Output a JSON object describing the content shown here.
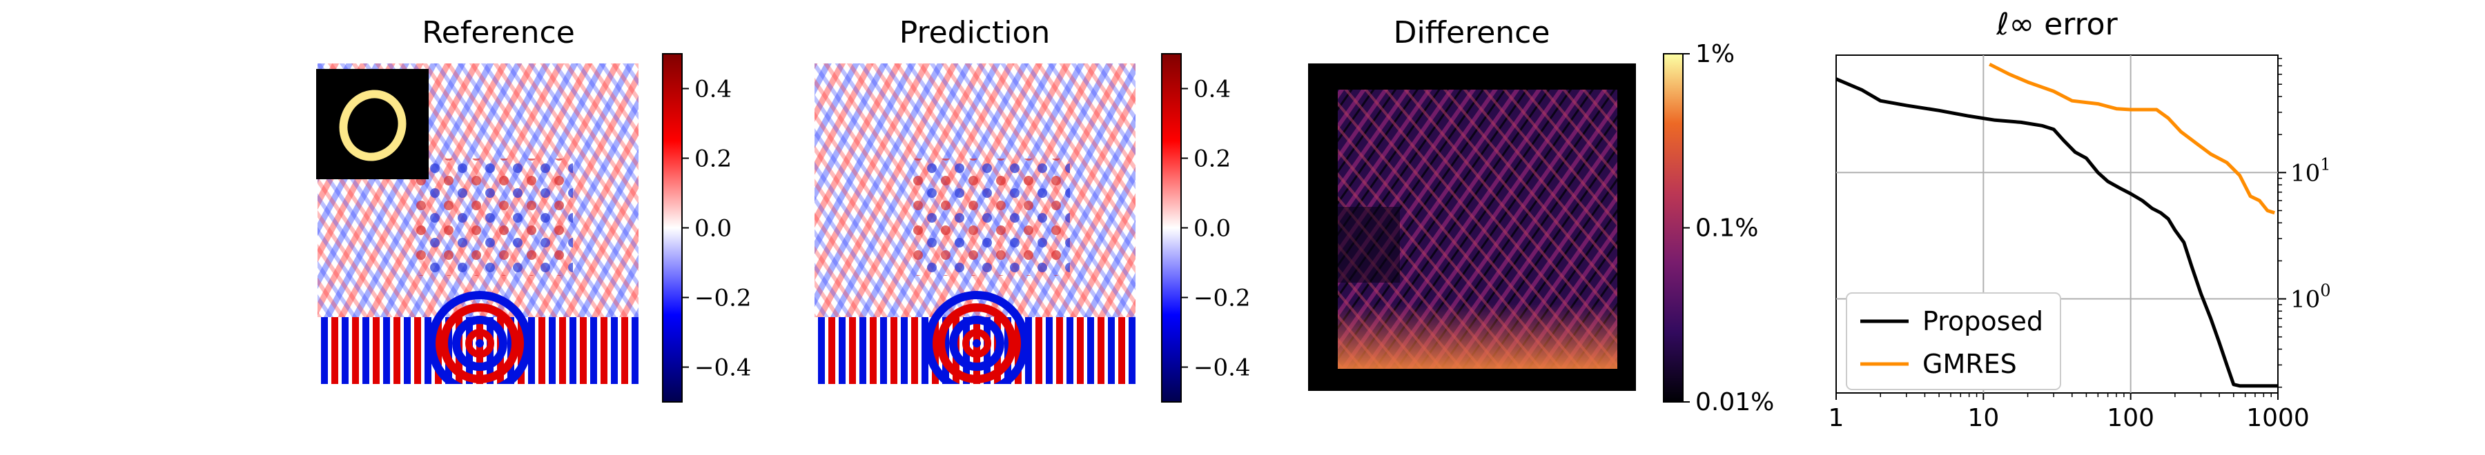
{
  "chart_data": [
    {
      "type": "heatmap",
      "title": "Reference",
      "colormap": "seismic",
      "colorbar": {
        "min": -0.5,
        "max": 0.5,
        "ticks": [
          "0.4",
          "0.2",
          "0.0",
          "−0.2",
          "−0.4"
        ],
        "tick_values": [
          0.4,
          0.2,
          0.0,
          -0.2,
          -0.4
        ]
      },
      "inset": "ring"
    },
    {
      "type": "heatmap",
      "title": "Prediction",
      "colormap": "seismic",
      "colorbar": {
        "min": -0.5,
        "max": 0.5,
        "ticks": [
          "0.4",
          "0.2",
          "0.0",
          "−0.2",
          "−0.4"
        ],
        "tick_values": [
          0.4,
          0.2,
          0.0,
          -0.2,
          -0.4
        ]
      }
    },
    {
      "type": "heatmap",
      "title": "Difference",
      "colormap": "inferno",
      "colorbar": {
        "scale": "log",
        "ticks": [
          "1%",
          "0.1%",
          "0.01%"
        ],
        "tick_values": [
          1,
          0.1,
          0.01
        ]
      }
    },
    {
      "type": "line",
      "title": "ℓ∞ error",
      "xscale": "log",
      "yscale": "log",
      "xlim": [
        1,
        1000
      ],
      "ylim": [
        0.18,
        85
      ],
      "xticks": [
        "1",
        "10",
        "100",
        "1000"
      ],
      "xtick_values": [
        1,
        10,
        100,
        1000
      ],
      "yticks": [
        "10",
        "10"
      ],
      "ytick_exponents": [
        "1",
        "0"
      ],
      "ytick_values": [
        10,
        1
      ],
      "grid": true,
      "legend": "bottom-left",
      "series": [
        {
          "name": "Proposed",
          "color": "#000000",
          "points": [
            [
              1,
              55
            ],
            [
              1.5,
              45
            ],
            [
              2,
              37
            ],
            [
              3,
              34
            ],
            [
              5,
              31
            ],
            [
              8,
              28
            ],
            [
              12,
              26
            ],
            [
              18,
              25
            ],
            [
              25,
              23.5
            ],
            [
              30,
              22
            ],
            [
              35,
              18
            ],
            [
              42,
              14.5
            ],
            [
              50,
              13
            ],
            [
              60,
              10
            ],
            [
              70,
              8.5
            ],
            [
              85,
              7.5
            ],
            [
              100,
              6.8
            ],
            [
              120,
              6
            ],
            [
              140,
              5.2
            ],
            [
              160,
              4.8
            ],
            [
              180,
              4.3
            ],
            [
              200,
              3.5
            ],
            [
              230,
              2.8
            ],
            [
              260,
              1.8
            ],
            [
              300,
              1.1
            ],
            [
              350,
              0.7
            ],
            [
              400,
              0.45
            ],
            [
              450,
              0.3
            ],
            [
              500,
              0.21
            ],
            [
              550,
              0.205
            ],
            [
              700,
              0.205
            ],
            [
              1000,
              0.205
            ]
          ]
        },
        {
          "name": "GMRES",
          "color": "#ff8c00",
          "points": [
            [
              11,
              72
            ],
            [
              15,
              60
            ],
            [
              20,
              52
            ],
            [
              30,
              44
            ],
            [
              40,
              37
            ],
            [
              60,
              35
            ],
            [
              80,
              32
            ],
            [
              100,
              31.5
            ],
            [
              150,
              31.5
            ],
            [
              180,
              27
            ],
            [
              220,
              21
            ],
            [
              280,
              17
            ],
            [
              350,
              14
            ],
            [
              450,
              12
            ],
            [
              550,
              9.5
            ],
            [
              650,
              6.5
            ],
            [
              750,
              6
            ],
            [
              850,
              5
            ],
            [
              950,
              4.8
            ]
          ]
        }
      ]
    }
  ]
}
